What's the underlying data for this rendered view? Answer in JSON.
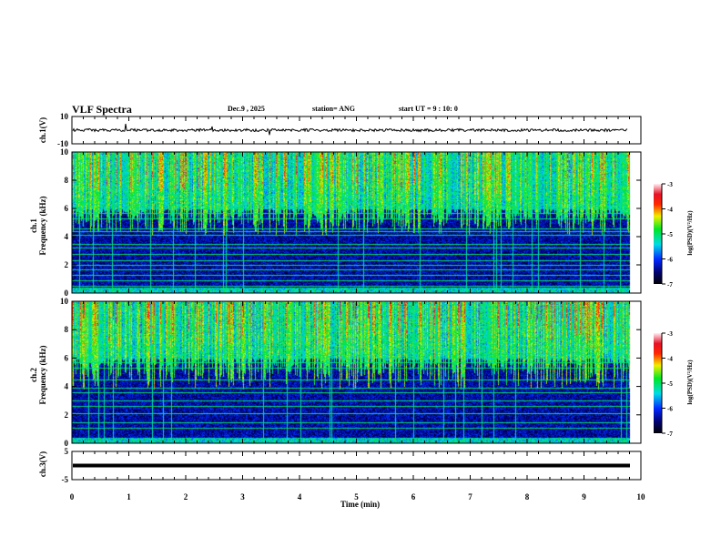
{
  "header": {
    "title": "VLF Spectra",
    "date": "Dec.9  , 2025",
    "station": "station= ANG",
    "start": "start  UT =   9  : 10: 0"
  },
  "chart_data": [
    {
      "type": "line",
      "name": "ch1-waveform",
      "ylabel": "ch.1(V)",
      "ylim": [
        -10,
        10
      ],
      "yticks": [
        "10",
        "-10"
      ],
      "xlim": [
        0,
        10
      ],
      "baseline_v": 0,
      "noise_amplitude_v": 1
    },
    {
      "type": "heatmap",
      "name": "ch1-spectrogram",
      "ylabel_top": "ch.1",
      "ylabel": "Frequency  (kHz)",
      "ylim": [
        0,
        10
      ],
      "yticks": [
        "0",
        "2",
        "4",
        "6",
        "8",
        "10"
      ],
      "xlim": [
        0,
        10
      ],
      "colorbar": {
        "label": "log(PSD)(V²/Hz)",
        "range": [
          -7,
          -3
        ],
        "ticks": [
          "-3",
          "-4",
          "-5",
          "-6",
          "-7"
        ]
      },
      "narrowband_lines_khz": [
        0.5,
        0.9,
        1.3,
        1.7,
        2.0,
        2.3,
        2.8,
        3.2,
        3.5,
        4.1,
        4.4,
        4.6,
        5.3,
        5.7
      ]
    },
    {
      "type": "heatmap",
      "name": "ch2-spectrogram",
      "ylabel_top": "ch.2",
      "ylabel": "Frequency  (kHz)",
      "ylim": [
        0,
        10
      ],
      "yticks": [
        "0",
        "2",
        "4",
        "6",
        "8",
        "10"
      ],
      "xlim": [
        0,
        10
      ],
      "colorbar": {
        "label": "log(PSD)(V²/Hz)",
        "range": [
          -7,
          -3
        ],
        "ticks": [
          "-3",
          "-4",
          "-5",
          "-6",
          "-7"
        ]
      },
      "narrowband_lines_khz": [
        1.1,
        1.5,
        2.1,
        2.6,
        3.0,
        3.6,
        3.9,
        4.5,
        5.3,
        5.7
      ]
    },
    {
      "type": "line",
      "name": "ch3-waveform",
      "ylabel": "ch.3(V)",
      "ylim": [
        -5,
        5
      ],
      "yticks": [
        "5",
        "-5"
      ],
      "xlim": [
        0,
        10
      ],
      "baseline_v": 0,
      "xlabel": "Time  (min)",
      "xticks": [
        "0",
        "1",
        "2",
        "3",
        "4",
        "5",
        "6",
        "7",
        "8",
        "9",
        "10"
      ]
    }
  ]
}
